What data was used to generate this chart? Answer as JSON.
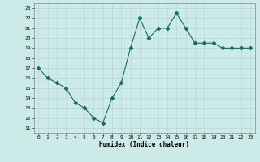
{
  "x": [
    0,
    1,
    2,
    3,
    4,
    5,
    6,
    7,
    8,
    9,
    10,
    11,
    12,
    13,
    14,
    15,
    16,
    17,
    18,
    19,
    20,
    21,
    22,
    23
  ],
  "y": [
    17,
    16,
    15.5,
    15,
    13.5,
    13,
    12,
    11.5,
    14,
    15.5,
    19,
    22,
    20,
    21,
    21,
    22.5,
    21,
    19.5,
    19.5,
    19.5,
    19,
    19,
    19,
    19
  ],
  "line_color": "#1a6b5e",
  "marker": "D",
  "bg_color": "#cceae7",
  "grid_color": "#b8d8d5",
  "xlabel": "Humidex (Indice chaleur)",
  "ylabel_ticks": [
    11,
    12,
    13,
    14,
    15,
    16,
    17,
    18,
    19,
    20,
    21,
    22,
    23
  ],
  "xlim": [
    -0.5,
    23.5
  ],
  "ylim": [
    10.5,
    23.5
  ]
}
